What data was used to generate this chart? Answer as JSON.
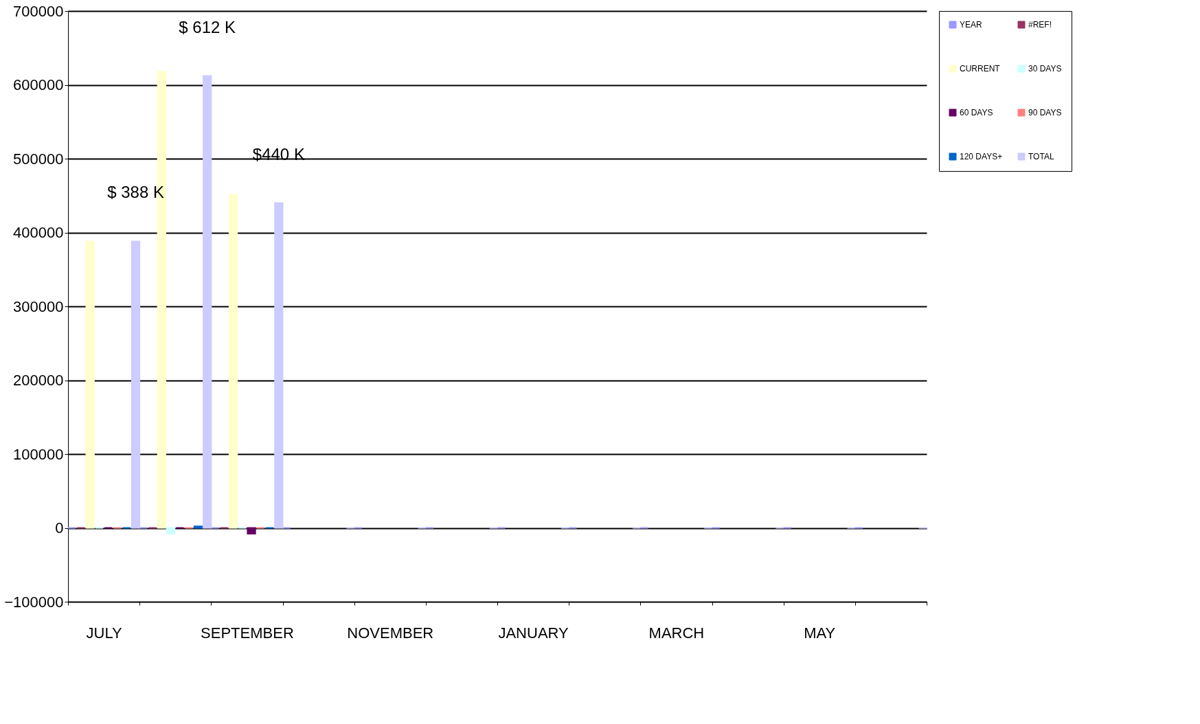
{
  "chart_data": {
    "type": "bar",
    "categories": [
      "JULY",
      null,
      "SEPTEMBER",
      null,
      "NOVEMBER",
      null,
      "JANUARY",
      null,
      "MARCH",
      null,
      "MAY",
      null
    ],
    "series": [
      {
        "name": "YEAR",
        "color": "#9999ff",
        "values": [
          0,
          0,
          0,
          0,
          0,
          0,
          0,
          0,
          0,
          0,
          0,
          0
        ]
      },
      {
        "name": "#REF!",
        "color": "#993366",
        "values": [
          0,
          0,
          0,
          null,
          null,
          null,
          null,
          null,
          null,
          null,
          null,
          null
        ]
      },
      {
        "name": "CURRENT",
        "color": "#ffffcc",
        "values": [
          388000,
          618000,
          451000,
          null,
          null,
          null,
          null,
          null,
          null,
          null,
          null,
          null
        ]
      },
      {
        "name": "30 DAYS",
        "color": "#ccffff",
        "values": [
          0,
          -8000,
          0,
          null,
          null,
          null,
          null,
          null,
          null,
          null,
          null,
          null
        ]
      },
      {
        "name": "60 DAYS",
        "color": "#660066",
        "values": [
          0,
          0,
          -8000,
          null,
          null,
          null,
          null,
          null,
          null,
          null,
          null,
          null
        ]
      },
      {
        "name": "90 DAYS",
        "color": "#ff8080",
        "values": [
          0,
          0,
          0,
          null,
          null,
          null,
          null,
          null,
          null,
          null,
          null,
          null
        ]
      },
      {
        "name": "120 DAYS+",
        "color": "#0066cc",
        "values": [
          0,
          2000,
          0,
          null,
          null,
          null,
          null,
          null,
          null,
          null,
          null,
          null
        ]
      },
      {
        "name": "TOTAL",
        "color": "#ccccff",
        "values": [
          388000,
          612000,
          440000,
          0,
          0,
          0,
          0,
          0,
          0,
          0,
          0,
          0
        ],
        "value_labels": [
          "$ 388 K",
          "$ 612 K",
          "$440 K",
          null,
          null,
          null,
          null,
          null,
          null,
          null,
          null,
          null
        ]
      }
    ],
    "ylim": [
      -100000,
      700000
    ],
    "yticks": [
      -100000,
      0,
      100000,
      200000,
      300000,
      400000,
      500000,
      600000,
      700000
    ],
    "grid": "y",
    "legend": "right"
  }
}
